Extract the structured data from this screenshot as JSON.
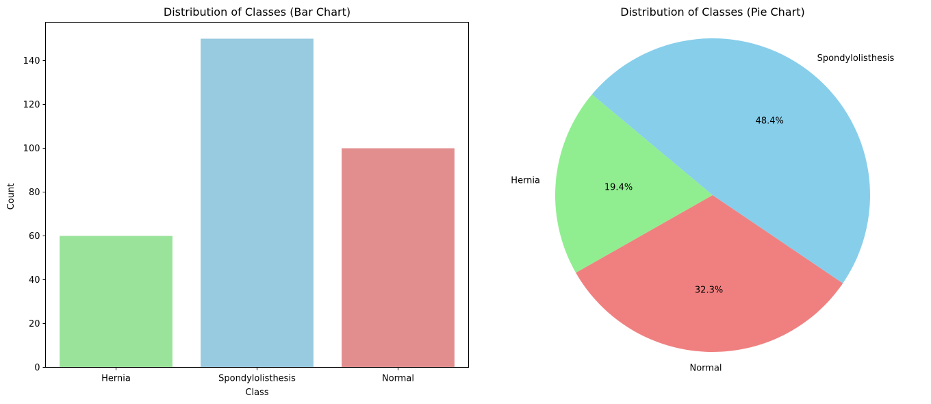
{
  "chart_data": [
    {
      "type": "bar",
      "title": "Distribution of Classes (Bar Chart)",
      "xlabel": "Class",
      "ylabel": "Count",
      "categories": [
        "Hernia",
        "Spondylolisthesis",
        "Normal"
      ],
      "values": [
        60,
        150,
        100
      ],
      "colors": [
        "#9ae39a",
        "#98cae0",
        "#e28e8f"
      ],
      "ylim": [
        0,
        157.5
      ],
      "yticks": [
        "0",
        "20",
        "40",
        "60",
        "80",
        "100",
        "120",
        "140"
      ],
      "grid": false,
      "legend": "none"
    },
    {
      "type": "pie",
      "title": "Distribution of Classes (Pie Chart)",
      "labels": [
        "Hernia",
        "Normal",
        "Spondylolisthesis"
      ],
      "values": [
        60,
        100,
        150
      ],
      "percent_labels": [
        "19.4%",
        "32.3%",
        "48.4%"
      ],
      "colors": [
        "#90ee90",
        "#f08080",
        "#87ceeb"
      ],
      "start_angle_deg": 140,
      "direction": "counterclockwise"
    }
  ]
}
